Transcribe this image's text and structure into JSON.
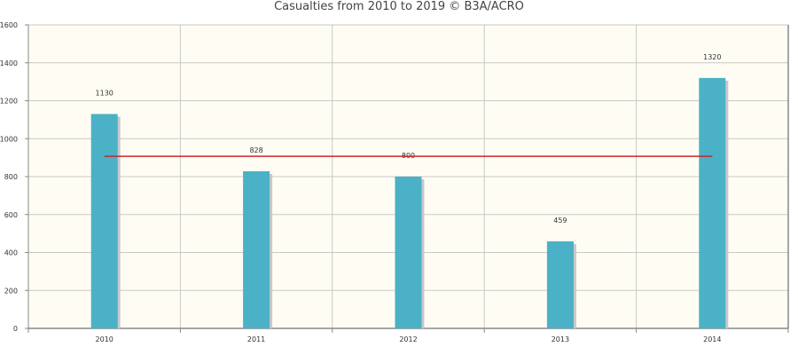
{
  "chart_data": {
    "type": "bar",
    "title": "Casualties from 2010 to 2019 © B3A/ACRO",
    "categories": [
      "2010",
      "2011",
      "2012",
      "2013",
      "2014"
    ],
    "values": [
      1130,
      828,
      800,
      459,
      1320
    ],
    "data_labels": [
      "1130",
      "828",
      "800",
      "459",
      "1320"
    ],
    "average_line": {
      "values": [
        907,
        907,
        907,
        907,
        907
      ]
    },
    "ylim": [
      0,
      1600
    ],
    "yticks": [
      0,
      200,
      400,
      600,
      800,
      1000,
      1200,
      1400,
      1600
    ],
    "grid": true,
    "colors": {
      "bar": "#4bb1c6",
      "bar_shadow": "#c8c8c8",
      "line": "#c62828",
      "plot_background": "#fffdf3",
      "grid": "#c8c8c8",
      "axis": "#888888"
    }
  }
}
